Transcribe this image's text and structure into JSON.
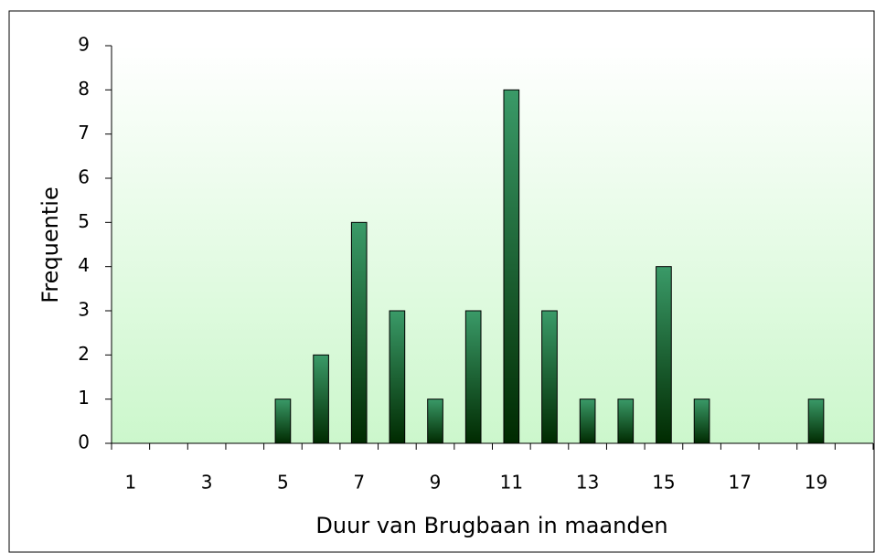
{
  "chart_data": {
    "type": "bar",
    "x_label": "Duur van Brugbaan in maanden",
    "y_label": "Frequentie",
    "categories": [
      "1",
      null,
      "3",
      null,
      "5",
      null,
      "7",
      null,
      "9",
      null,
      "11",
      null,
      "13",
      null,
      "15",
      null,
      "17",
      null,
      "19",
      null
    ],
    "values": [
      0,
      0,
      0,
      0,
      1,
      2,
      5,
      3,
      1,
      3,
      8,
      3,
      1,
      1,
      4,
      1,
      0,
      0,
      1,
      0
    ],
    "color": "#2e8b57",
    "ylim": [
      0,
      9
    ],
    "yticks": [
      0,
      1,
      2,
      3,
      4,
      5,
      6,
      7,
      8,
      9
    ],
    "grid": false
  }
}
